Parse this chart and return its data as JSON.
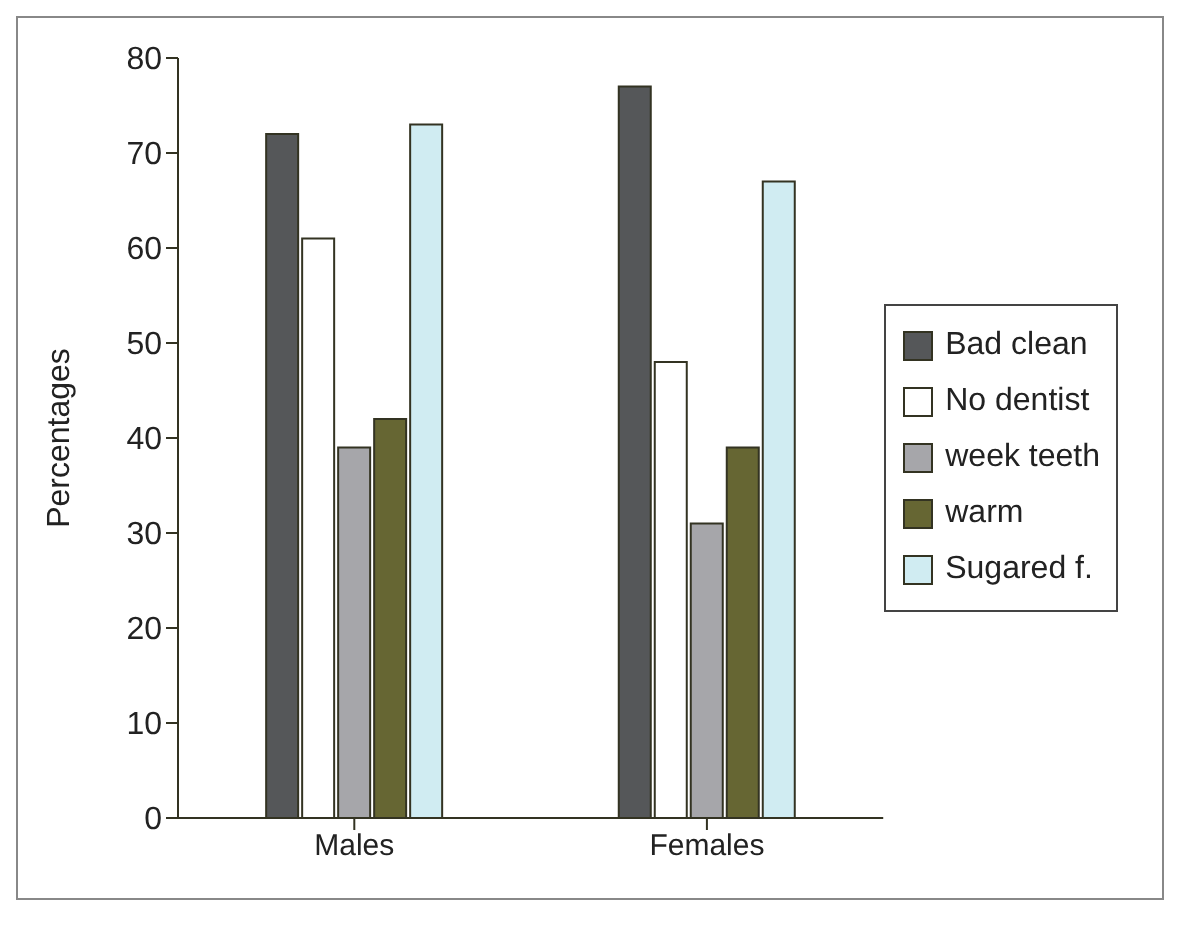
{
  "chart_data": {
    "type": "bar",
    "ylabel": "Percentages",
    "categories": [
      "Males",
      "Females"
    ],
    "series": [
      {
        "name": "Bad clean",
        "color": "#555759",
        "values": [
          72,
          77
        ]
      },
      {
        "name": "No dentist",
        "color": "#ffffff",
        "values": [
          61,
          48
        ]
      },
      {
        "name": "week teeth",
        "color": "#a6a6aa",
        "values": [
          39,
          31
        ]
      },
      {
        "name": "warm",
        "color": "#666633",
        "values": [
          42,
          39
        ]
      },
      {
        "name": "Sugared f.",
        "color": "#d0ecf2",
        "values": [
          73,
          67
        ]
      }
    ],
    "ylim": [
      0,
      80
    ],
    "yticks": [
      0,
      10,
      20,
      30,
      40,
      50,
      60,
      70,
      80
    ],
    "grid": false,
    "legend": "right"
  }
}
